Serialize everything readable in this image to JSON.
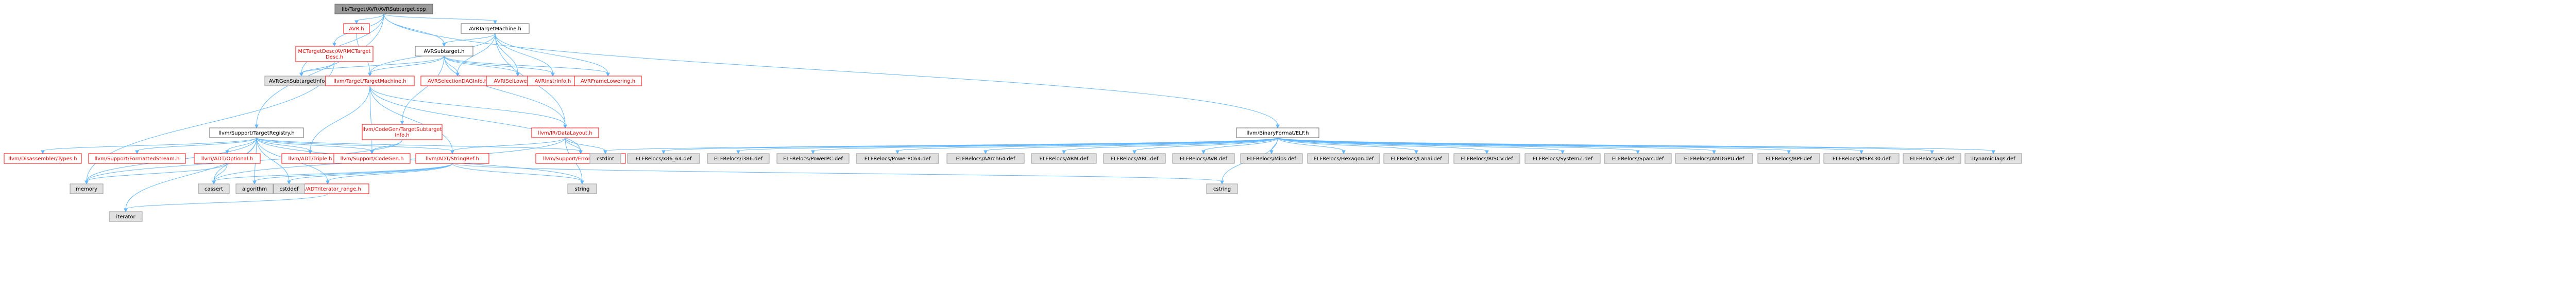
{
  "graph": {
    "root": "lib/Target/AVR/AVRSubtarget.cpp",
    "colors": {
      "root_fill": "#999999",
      "root_border": "#666666",
      "linked_fill": "#ffffff",
      "linked_border": "#ff0000",
      "system_fill": "#e0e0e0",
      "system_border": "#999999",
      "text": "#000000",
      "linked_text": "#ff0000",
      "edge": "#63b8ff"
    },
    "nodes": [
      {
        "id": "root",
        "label": "lib/Target/AVR/AVRSubtarget.cpp",
        "kind": "root"
      },
      {
        "id": "avr_h",
        "label": "AVR.h",
        "kind": "linked"
      },
      {
        "id": "avrtm_h",
        "label": "AVRTargetMachine.h",
        "kind": "plain"
      },
      {
        "id": "mctd_h",
        "label": "MCTargetDesc/AVRMCTarget\nDesc.h",
        "kind": "linked"
      },
      {
        "id": "avrst_h",
        "label": "AVRSubtarget.h",
        "kind": "plain"
      },
      {
        "id": "avrgen_inc",
        "label": "AVRGenSubtargetInfo.inc",
        "kind": "system"
      },
      {
        "id": "tm_h",
        "label": "llvm/Target/TargetMachine.h",
        "kind": "linked"
      },
      {
        "id": "cgsti_h",
        "label": "llvm/CodeGen/TargetSubtarget\nInfo.h",
        "kind": "linked"
      },
      {
        "id": "avrsdag_h",
        "label": "AVRSelectionDAGInfo.h",
        "kind": "linked"
      },
      {
        "id": "avrisel_h",
        "label": "AVRISelLowering.h",
        "kind": "linked"
      },
      {
        "id": "avrinstr_h",
        "label": "AVRInstrInfo.h",
        "kind": "linked"
      },
      {
        "id": "avrframe_h",
        "label": "AVRFrameLowering.h",
        "kind": "linked"
      },
      {
        "id": "dl_h",
        "label": "llvm/IR/DataLayout.h",
        "kind": "linked"
      },
      {
        "id": "treg_h",
        "label": "llvm/Support/TargetRegistry.h",
        "kind": "plain"
      },
      {
        "id": "elf_h",
        "label": "llvm/BinaryFormat/ELF.h",
        "kind": "plain"
      },
      {
        "id": "disasm_h",
        "label": "llvm/Disassembler/Types.h",
        "kind": "linked"
      },
      {
        "id": "fmt_h",
        "label": "llvm/Support/FormattedStream.h",
        "kind": "linked"
      },
      {
        "id": "opt_h",
        "label": "llvm/ADT/Optional.h",
        "kind": "linked"
      },
      {
        "id": "triple_h",
        "label": "llvm/ADT/Triple.h",
        "kind": "linked"
      },
      {
        "id": "codegen_h",
        "label": "llvm/Support/CodeGen.h",
        "kind": "linked"
      },
      {
        "id": "strref_h",
        "label": "llvm/ADT/StringRef.h",
        "kind": "linked"
      },
      {
        "id": "errh_h",
        "label": "llvm/Support/ErrorHandling.h",
        "kind": "linked"
      },
      {
        "id": "iterrange_h",
        "label": "llvm/ADT/iterator_range.h",
        "kind": "linked"
      },
      {
        "id": "cstdint",
        "label": "cstdint",
        "kind": "system"
      },
      {
        "id": "memory",
        "label": "memory",
        "kind": "system"
      },
      {
        "id": "cassert",
        "label": "cassert",
        "kind": "system"
      },
      {
        "id": "algorithm",
        "label": "algorithm",
        "kind": "system"
      },
      {
        "id": "cstddef",
        "label": "cstddef",
        "kind": "system"
      },
      {
        "id": "string",
        "label": "string",
        "kind": "system"
      },
      {
        "id": "cstring",
        "label": "cstring",
        "kind": "system"
      },
      {
        "id": "iterator",
        "label": "iterator",
        "kind": "system"
      },
      {
        "id": "x86_64",
        "label": "ELFRelocs/x86_64.def",
        "kind": "system"
      },
      {
        "id": "i386",
        "label": "ELFRelocs/i386.def",
        "kind": "system"
      },
      {
        "id": "ppc",
        "label": "ELFRelocs/PowerPC.def",
        "kind": "system"
      },
      {
        "id": "ppc64",
        "label": "ELFRelocs/PowerPC64.def",
        "kind": "system"
      },
      {
        "id": "aarch64",
        "label": "ELFRelocs/AArch64.def",
        "kind": "system"
      },
      {
        "id": "arm",
        "label": "ELFRelocs/ARM.def",
        "kind": "system"
      },
      {
        "id": "arc",
        "label": "ELFRelocs/ARC.def",
        "kind": "system"
      },
      {
        "id": "avrdef",
        "label": "ELFRelocs/AVR.def",
        "kind": "system"
      },
      {
        "id": "mips",
        "label": "ELFRelocs/Mips.def",
        "kind": "system"
      },
      {
        "id": "hexagon",
        "label": "ELFRelocs/Hexagon.def",
        "kind": "system"
      },
      {
        "id": "lanai",
        "label": "ELFRelocs/Lanai.def",
        "kind": "system"
      },
      {
        "id": "riscv",
        "label": "ELFRelocs/RISCV.def",
        "kind": "system"
      },
      {
        "id": "systemz",
        "label": "ELFRelocs/SystemZ.def",
        "kind": "system"
      },
      {
        "id": "sparc",
        "label": "ELFRelocs/Sparc.def",
        "kind": "system"
      },
      {
        "id": "amdgpu",
        "label": "ELFRelocs/AMDGPU.def",
        "kind": "system"
      },
      {
        "id": "bpf",
        "label": "ELFRelocs/BPF.def",
        "kind": "system"
      },
      {
        "id": "msp430",
        "label": "ELFRelocs/MSP430.def",
        "kind": "system"
      },
      {
        "id": "ve",
        "label": "ELFRelocs/VE.def",
        "kind": "system"
      },
      {
        "id": "dyntags",
        "label": "DynamicTags.def",
        "kind": "system"
      }
    ],
    "edges": [
      [
        "root",
        "avr_h"
      ],
      [
        "root",
        "avrtm_h"
      ],
      [
        "root",
        "mctd_h"
      ],
      [
        "root",
        "avrst_h"
      ],
      [
        "root",
        "treg_h"
      ],
      [
        "root",
        "elf_h"
      ],
      [
        "root",
        "avrgen_inc"
      ],
      [
        "avr_h",
        "tm_h"
      ],
      [
        "avrtm_h",
        "avrst_h"
      ],
      [
        "avrtm_h",
        "tm_h"
      ],
      [
        "avrtm_h",
        "avrsdag_h"
      ],
      [
        "avrtm_h",
        "avrisel_h"
      ],
      [
        "avrtm_h",
        "avrinstr_h"
      ],
      [
        "avrtm_h",
        "avrframe_h"
      ],
      [
        "avrtm_h",
        "dl_h"
      ],
      [
        "mctd_h",
        "avrgen_inc"
      ],
      [
        "mctd_h",
        "memory"
      ],
      [
        "avrst_h",
        "tm_h"
      ],
      [
        "avrst_h",
        "cgsti_h"
      ],
      [
        "avrst_h",
        "avrsdag_h"
      ],
      [
        "avrst_h",
        "avrisel_h"
      ],
      [
        "avrst_h",
        "avrinstr_h"
      ],
      [
        "avrst_h",
        "avrframe_h"
      ],
      [
        "avrst_h",
        "dl_h"
      ],
      [
        "avrst_h",
        "avrgen_inc"
      ],
      [
        "tm_h",
        "triple_h"
      ],
      [
        "tm_h",
        "codegen_h"
      ],
      [
        "tm_h",
        "strref_h"
      ],
      [
        "tm_h",
        "dl_h"
      ],
      [
        "tm_h",
        "errh_h"
      ],
      [
        "cgsti_h",
        "codegen_h"
      ],
      [
        "cgsti_h",
        "memory"
      ],
      [
        "dl_h",
        "strref_h"
      ],
      [
        "dl_h",
        "errh_h"
      ],
      [
        "dl_h",
        "cstdint"
      ],
      [
        "dl_h",
        "string"
      ],
      [
        "dl_h",
        "cassert"
      ],
      [
        "treg_h",
        "disasm_h"
      ],
      [
        "treg_h",
        "fmt_h"
      ],
      [
        "treg_h",
        "opt_h"
      ],
      [
        "treg_h",
        "triple_h"
      ],
      [
        "treg_h",
        "codegen_h"
      ],
      [
        "treg_h",
        "strref_h"
      ],
      [
        "treg_h",
        "errh_h"
      ],
      [
        "treg_h",
        "iterrange_h"
      ],
      [
        "treg_h",
        "memory"
      ],
      [
        "treg_h",
        "cassert"
      ],
      [
        "treg_h",
        "algorithm"
      ],
      [
        "treg_h",
        "cstddef"
      ],
      [
        "treg_h",
        "string"
      ],
      [
        "treg_h",
        "iterator"
      ],
      [
        "opt_h",
        "memory"
      ],
      [
        "opt_h",
        "cassert"
      ],
      [
        "strref_h",
        "cassert"
      ],
      [
        "strref_h",
        "algorithm"
      ],
      [
        "strref_h",
        "cstddef"
      ],
      [
        "strref_h",
        "string"
      ],
      [
        "strref_h",
        "cstring"
      ],
      [
        "strref_h",
        "iterrange_h"
      ],
      [
        "iterrange_h",
        "iterator"
      ],
      [
        "elf_h",
        "cstdint"
      ],
      [
        "elf_h",
        "cstring"
      ],
      [
        "elf_h",
        "x86_64"
      ],
      [
        "elf_h",
        "i386"
      ],
      [
        "elf_h",
        "ppc"
      ],
      [
        "elf_h",
        "ppc64"
      ],
      [
        "elf_h",
        "aarch64"
      ],
      [
        "elf_h",
        "arm"
      ],
      [
        "elf_h",
        "arc"
      ],
      [
        "elf_h",
        "avrdef"
      ],
      [
        "elf_h",
        "mips"
      ],
      [
        "elf_h",
        "hexagon"
      ],
      [
        "elf_h",
        "lanai"
      ],
      [
        "elf_h",
        "riscv"
      ],
      [
        "elf_h",
        "systemz"
      ],
      [
        "elf_h",
        "sparc"
      ],
      [
        "elf_h",
        "amdgpu"
      ],
      [
        "elf_h",
        "bpf"
      ],
      [
        "elf_h",
        "msp430"
      ],
      [
        "elf_h",
        "ve"
      ],
      [
        "elf_h",
        "dyntags"
      ]
    ]
  }
}
